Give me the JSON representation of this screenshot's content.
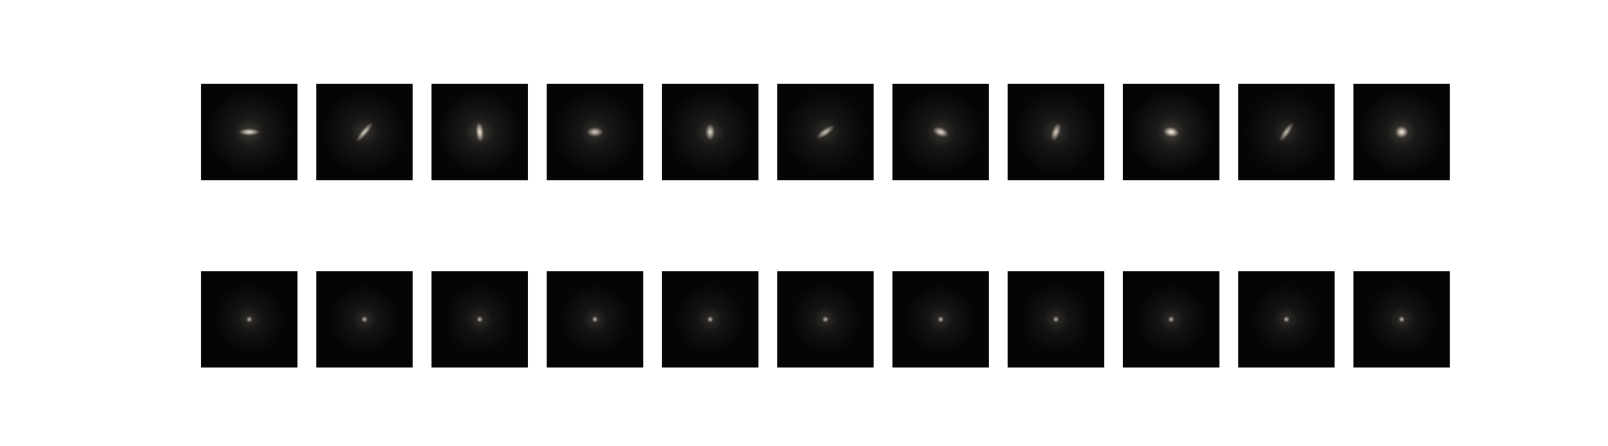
{
  "figure": {
    "background": "#ffffff",
    "tile_background": "#050505",
    "glow_color": "#e8dccb",
    "core_color": "#ffffff",
    "rows": [
      {
        "name": "galaxy-row",
        "tiles": [
          {
            "shape": "elongated-horizontal",
            "rotation_deg": 0,
            "aspect": 3.0,
            "brightness": 0.9
          },
          {
            "shape": "thin-diagonal",
            "rotation_deg": -50,
            "aspect": 4.0,
            "brightness": 0.8
          },
          {
            "shape": "elongated-vertical",
            "rotation_deg": 85,
            "aspect": 2.5,
            "brightness": 0.95
          },
          {
            "shape": "compact",
            "rotation_deg": 0,
            "aspect": 1.8,
            "brightness": 0.8
          },
          {
            "shape": "vertical-oval",
            "rotation_deg": 90,
            "aspect": 1.7,
            "brightness": 0.85
          },
          {
            "shape": "small-diagonal",
            "rotation_deg": -35,
            "aspect": 3.0,
            "brightness": 0.75
          },
          {
            "shape": "tilted-oval",
            "rotation_deg": 20,
            "aspect": 1.8,
            "brightness": 0.85
          },
          {
            "shape": "tilted-vertical",
            "rotation_deg": -70,
            "aspect": 2.2,
            "brightness": 0.8
          },
          {
            "shape": "wide-bright",
            "rotation_deg": 10,
            "aspect": 1.6,
            "brightness": 1.0
          },
          {
            "shape": "tiny-diagonal",
            "rotation_deg": -55,
            "aspect": 3.5,
            "brightness": 0.7
          },
          {
            "shape": "round-bright",
            "rotation_deg": 0,
            "aspect": 1.1,
            "brightness": 0.95
          }
        ]
      },
      {
        "name": "psf-row",
        "tiles": [
          {
            "shape": "point-source",
            "rotation_deg": 0,
            "aspect": 1.0,
            "brightness": 0.7
          },
          {
            "shape": "point-source",
            "rotation_deg": 0,
            "aspect": 1.0,
            "brightness": 0.7
          },
          {
            "shape": "point-source",
            "rotation_deg": 0,
            "aspect": 1.0,
            "brightness": 0.7
          },
          {
            "shape": "point-source",
            "rotation_deg": 0,
            "aspect": 1.0,
            "brightness": 0.7
          },
          {
            "shape": "point-source",
            "rotation_deg": 0,
            "aspect": 1.0,
            "brightness": 0.7
          },
          {
            "shape": "point-source",
            "rotation_deg": 0,
            "aspect": 1.0,
            "brightness": 0.7
          },
          {
            "shape": "point-source",
            "rotation_deg": 0,
            "aspect": 1.0,
            "brightness": 0.7
          },
          {
            "shape": "point-source",
            "rotation_deg": 0,
            "aspect": 1.0,
            "brightness": 0.7
          },
          {
            "shape": "point-source",
            "rotation_deg": 0,
            "aspect": 1.0,
            "brightness": 0.7
          },
          {
            "shape": "point-source",
            "rotation_deg": 0,
            "aspect": 1.0,
            "brightness": 0.7
          },
          {
            "shape": "point-source",
            "rotation_deg": 0,
            "aspect": 1.0,
            "brightness": 0.7
          }
        ]
      }
    ]
  }
}
